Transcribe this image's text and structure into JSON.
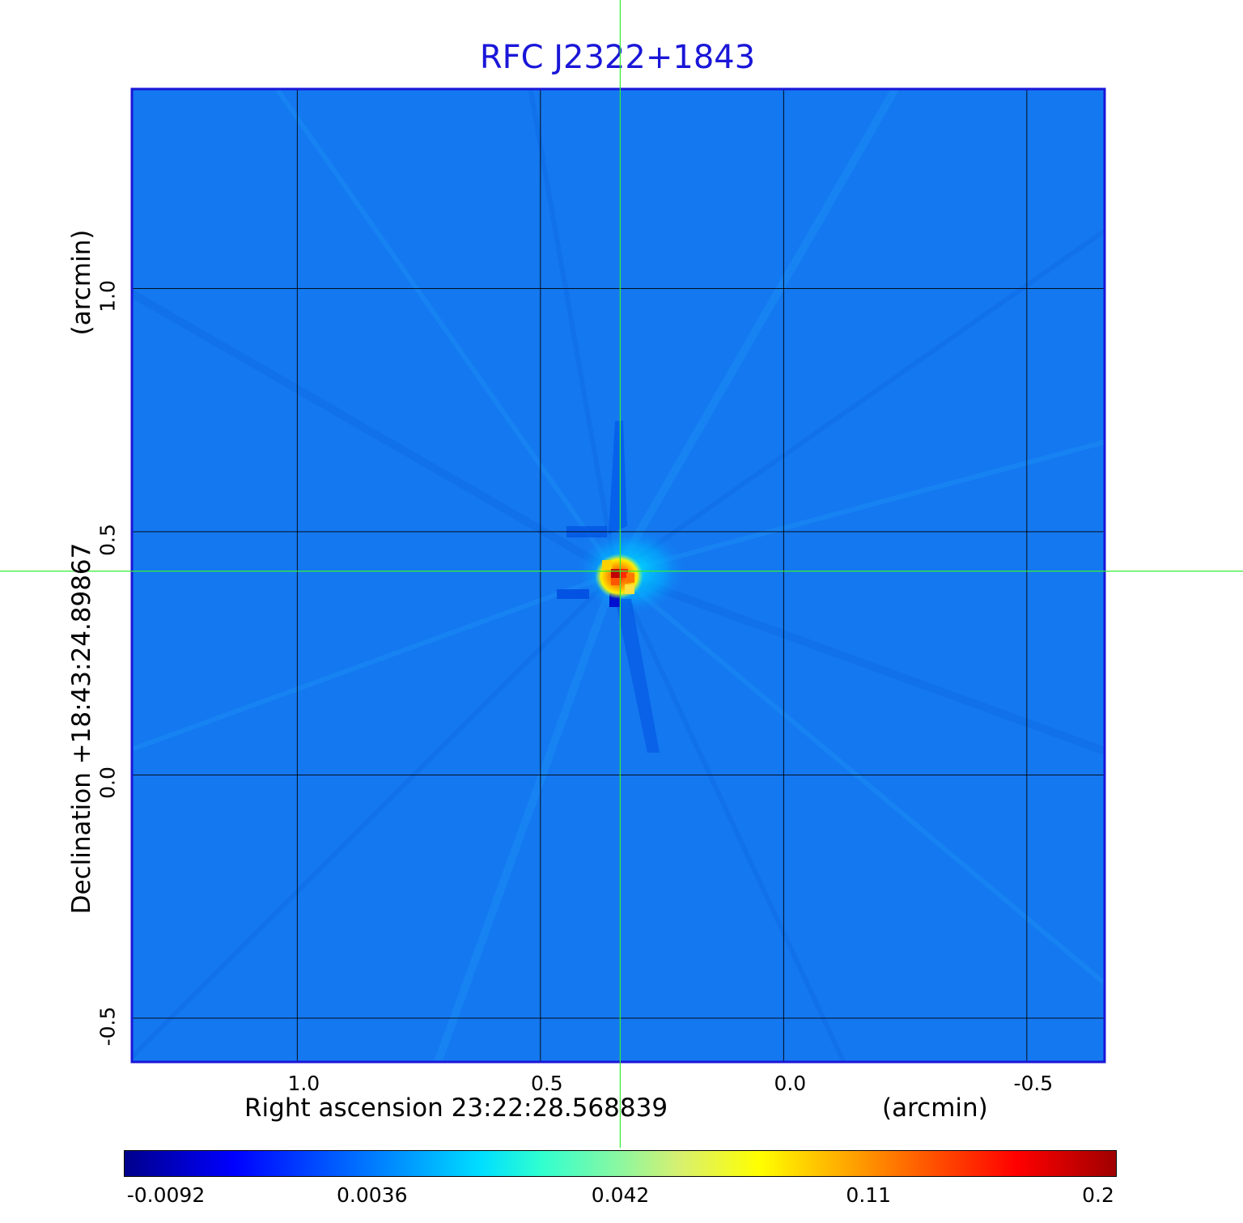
{
  "chart_data": {
    "type": "heatmap",
    "title": "RFC J2322+1843",
    "xlabel": "Right ascension  23:22:28.568839",
    "xunit": "(arcmin)",
    "ylabel": "Declination  +18:43:24.89867",
    "yunit": "(arcmin)",
    "x_ticks": [
      "1.0",
      "0.5",
      "0.0",
      "-0.5"
    ],
    "x_tick_values": [
      1.0,
      0.5,
      0.0,
      -0.5
    ],
    "y_ticks": [
      "1.0",
      "0.5",
      "0.0",
      "-0.5"
    ],
    "y_tick_values": [
      1.0,
      0.5,
      0.0,
      -0.5
    ],
    "xlim": [
      1.34,
      -0.66
    ],
    "ylim": [
      -0.59,
      1.41
    ],
    "grid": true,
    "crosshair": {
      "x": 0.336,
      "y": 0.419
    },
    "source": {
      "x": 0.345,
      "y": 0.415,
      "peak": 0.2
    },
    "colorbar": {
      "ticks": [
        "-0.0092",
        "0.0036",
        "0.042",
        "0.11",
        "0.2"
      ],
      "tick_values": [
        -0.0092,
        0.0036,
        0.042,
        0.11,
        0.2
      ],
      "colormap": "jet"
    },
    "background_color": "#1478f0",
    "frame_color": "#1a16d8",
    "crosshair_color": "#33ee33"
  }
}
